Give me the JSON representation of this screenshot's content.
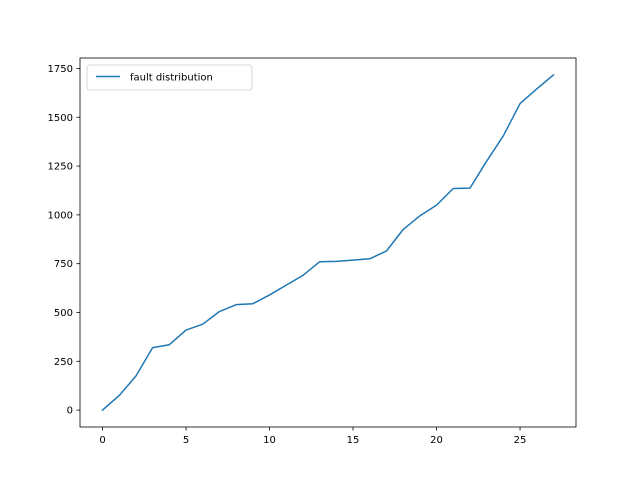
{
  "chart_data": {
    "type": "line",
    "title": "",
    "xlabel": "",
    "ylabel": "",
    "xlim": [
      -1.35,
      28.35
    ],
    "ylim": [
      -86.5,
      1803.5
    ],
    "xticks": [
      0,
      5,
      10,
      15,
      20,
      25
    ],
    "yticks": [
      0,
      250,
      500,
      750,
      1000,
      1250,
      1500,
      1750
    ],
    "grid": false,
    "legend": "upper left",
    "series": [
      {
        "name": "fault distribution",
        "color": "#1f77b4",
        "x": [
          0,
          1,
          2,
          3,
          4,
          5,
          6,
          7,
          8,
          9,
          10,
          11,
          12,
          13,
          14,
          15,
          16,
          17,
          18,
          19,
          20,
          21,
          22,
          23,
          24,
          25,
          26,
          27
        ],
        "y": [
          0,
          75,
          175,
          320,
          335,
          410,
          440,
          505,
          540,
          545,
          590,
          640,
          690,
          760,
          762,
          768,
          775,
          815,
          925,
          995,
          1050,
          1135,
          1137,
          1275,
          1405,
          1570,
          1645,
          1717
        ]
      }
    ]
  }
}
